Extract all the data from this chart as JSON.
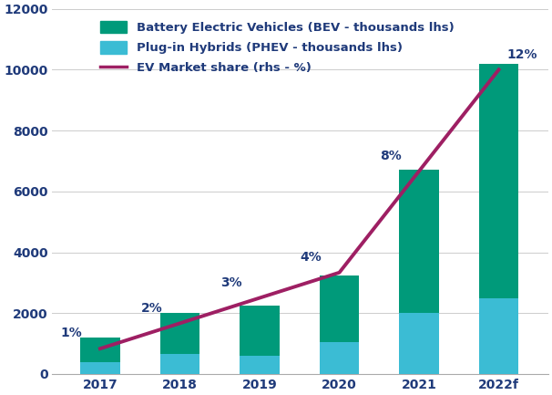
{
  "years": [
    "2017",
    "2018",
    "2019",
    "2020",
    "2021",
    "2022f"
  ],
  "bev": [
    800,
    1350,
    1650,
    2200,
    4700,
    7700
  ],
  "phev": [
    400,
    650,
    600,
    1050,
    2000,
    2500
  ],
  "market_share": [
    1,
    2,
    3,
    4,
    8,
    12
  ],
  "market_share_labels": [
    "1%",
    "2%",
    "3%",
    "4%",
    "8%",
    "12%"
  ],
  "bev_color": "#009a7a",
  "phev_color": "#3bbcd4",
  "line_color": "#9e1f63",
  "text_color": "#1f3a7a",
  "ylim_left": [
    0,
    12000
  ],
  "ylim_right": [
    0,
    14.4
  ],
  "legend_labels": [
    "Battery Electric Vehicles (BEV - thousands lhs)",
    "Plug-in Hybrids (PHEV - thousands lhs)",
    "EV Market share (rhs - %)"
  ],
  "yticks_left": [
    0,
    2000,
    4000,
    6000,
    8000,
    10000,
    12000
  ],
  "bar_width": 0.5
}
